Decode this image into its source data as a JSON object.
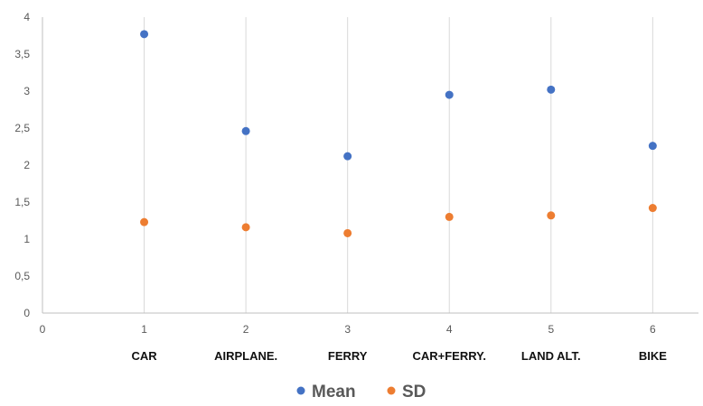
{
  "chart_data": {
    "type": "scatter",
    "x": [
      1,
      2,
      3,
      4,
      5,
      6
    ],
    "categories": [
      "CAR",
      "AIRPLANE.",
      "FERRY",
      "CAR+FERRY.",
      "LAND ALT.",
      "BIKE"
    ],
    "series": [
      {
        "name": "Mean",
        "color": "#4472C4",
        "values": [
          3.77,
          2.46,
          2.12,
          2.95,
          3.02,
          2.26
        ]
      },
      {
        "name": "SD",
        "color": "#ED7D31",
        "values": [
          1.23,
          1.16,
          1.08,
          1.3,
          1.32,
          1.42
        ]
      }
    ],
    "xlim": [
      0,
      6.45
    ],
    "ylim": [
      0,
      4
    ],
    "xticks": [
      0,
      1,
      2,
      3,
      4,
      5,
      6
    ],
    "xtick_labels": [
      "0",
      "1",
      "2",
      "3",
      "4",
      "5",
      "6"
    ],
    "yticks": [
      0,
      0.5,
      1,
      1.5,
      2,
      2.5,
      3,
      3.5,
      4
    ],
    "ytick_labels": [
      "0",
      "0,5",
      "1",
      "1,5",
      "2",
      "2,5",
      "3",
      "3,5",
      "4"
    ],
    "grid": "vertical",
    "legend": "bottom",
    "gridline_color": "#D9D9D9",
    "axis_color": "#BFBFBF"
  }
}
